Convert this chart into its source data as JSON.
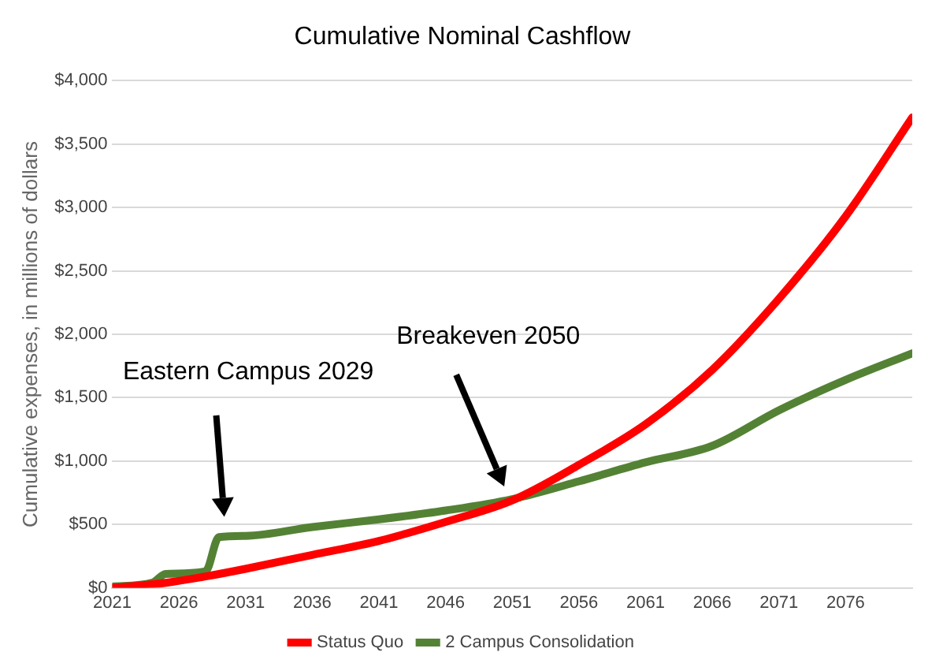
{
  "chart_data": {
    "type": "line",
    "title": "Cumulative Nominal Cashflow",
    "ylabel": "Cumulative expenses, in millions of dollars",
    "xlim": [
      2021,
      2081
    ],
    "xticks": [
      2021,
      2026,
      2031,
      2036,
      2041,
      2046,
      2051,
      2056,
      2061,
      2066,
      2071,
      2076
    ],
    "ylim": [
      0,
      4000
    ],
    "yticks": [
      {
        "value": 0,
        "label": "$0"
      },
      {
        "value": 500,
        "label": "$500"
      },
      {
        "value": 1000,
        "label": "$1,000"
      },
      {
        "value": 1500,
        "label": "$1,500"
      },
      {
        "value": 2000,
        "label": "$2,000"
      },
      {
        "value": 2500,
        "label": "$2,500"
      },
      {
        "value": 3000,
        "label": "$3,000"
      },
      {
        "value": 3500,
        "label": "$3,500"
      },
      {
        "value": 4000,
        "label": "$4,000"
      }
    ],
    "grid": "y",
    "legend": "bottom",
    "marker": "none",
    "line_style": "solid",
    "series": [
      {
        "name": "Status Quo",
        "color": "#ff0000",
        "x": [
          2021,
          2025,
          2028,
          2031,
          2036,
          2041,
          2046,
          2051,
          2056,
          2061,
          2066,
          2071,
          2076,
          2081
        ],
        "values": [
          0,
          40,
          90,
          150,
          260,
          370,
          520,
          690,
          970,
          1290,
          1720,
          2280,
          2930,
          3710
        ]
      },
      {
        "name": "2 Campus Consolidation",
        "color": "#548235",
        "x": [
          2021,
          2024,
          2025,
          2028,
          2029,
          2031,
          2036,
          2041,
          2046,
          2051,
          2056,
          2061,
          2066,
          2071,
          2076,
          2081
        ],
        "values": [
          10,
          40,
          110,
          130,
          400,
          410,
          480,
          540,
          610,
          700,
          840,
          990,
          1120,
          1400,
          1640,
          1850
        ]
      }
    ],
    "annotations": [
      "Eastern Campus 2029",
      "Breakeven 2050"
    ]
  }
}
